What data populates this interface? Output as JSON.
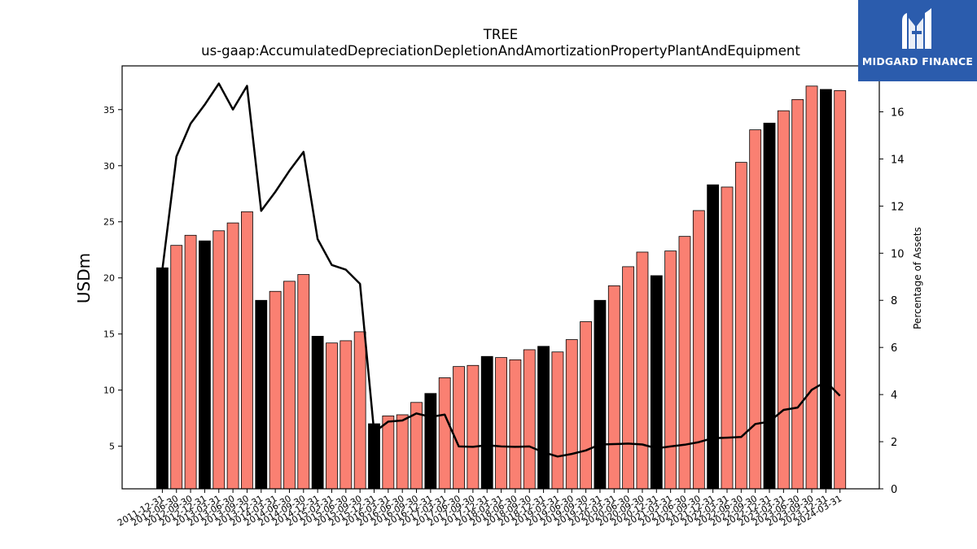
{
  "logo": {
    "text": "MIDGARD FINANCE",
    "background": "#2b5cad"
  },
  "chart_data": {
    "type": "bar",
    "title": "TREE",
    "subtitle": "us-gaap:AccumulatedDepreciationDepletionAndAmortizationPropertyPlantAndEquipment",
    "ylabel": "USDm",
    "y2label": "Percentage of Assets",
    "ylim": [
      1.2,
      38.9
    ],
    "y2lim": [
      0,
      17.95
    ],
    "yticks": [
      5,
      10,
      15,
      20,
      25,
      30,
      35
    ],
    "y2ticks": [
      0,
      2,
      4,
      6,
      8,
      10,
      12,
      14,
      16
    ],
    "categories": [
      "2011-12-31",
      "2012-06-30",
      "2012-09-30",
      "2012-12-31",
      "2013-03-31",
      "2013-06-30",
      "2013-09-30",
      "2013-12-31",
      "2014-03-31",
      "2014-06-30",
      "2014-09-30",
      "2014-12-31",
      "2015-03-31",
      "2015-06-30",
      "2015-09-30",
      "2015-12-31",
      "2016-03-31",
      "2016-06-30",
      "2016-09-30",
      "2016-12-31",
      "2017-03-31",
      "2017-06-30",
      "2017-09-30",
      "2017-12-31",
      "2018-03-31",
      "2018-06-30",
      "2018-09-30",
      "2018-12-31",
      "2019-03-31",
      "2019-06-30",
      "2019-09-30",
      "2019-12-31",
      "2020-03-31",
      "2020-06-30",
      "2020-09-30",
      "2020-12-31",
      "2021-03-31",
      "2021-06-30",
      "2021-09-30",
      "2021-12-31",
      "2022-03-31",
      "2022-06-30",
      "2022-09-30",
      "2022-12-31",
      "2023-03-31",
      "2023-06-30",
      "2023-09-30",
      "2023-12-31",
      "2024-03-31"
    ],
    "bar_colors": {
      "year_end": "#000000",
      "quarter": "#fa8072"
    },
    "series": [
      {
        "name": "USDm",
        "type": "bar",
        "values": [
          20.9,
          22.9,
          23.8,
          23.3,
          24.2,
          24.9,
          25.9,
          18.0,
          18.8,
          19.7,
          20.3,
          14.8,
          14.2,
          14.4,
          15.2,
          7.0,
          7.7,
          7.8,
          8.9,
          9.7,
          11.1,
          12.1,
          12.2,
          13.0,
          12.9,
          12.7,
          13.6,
          13.9,
          13.4,
          14.5,
          16.1,
          18.0,
          19.3,
          21.0,
          22.3,
          20.2,
          22.4,
          23.7,
          26.0,
          28.3,
          28.1,
          30.3,
          33.2,
          33.8,
          34.9,
          35.9,
          37.1,
          36.8,
          36.7
        ],
        "year_end": [
          true,
          false,
          false,
          true,
          false,
          false,
          false,
          true,
          false,
          false,
          false,
          true,
          false,
          false,
          false,
          true,
          false,
          false,
          false,
          true,
          false,
          false,
          false,
          true,
          false,
          false,
          false,
          true,
          false,
          false,
          false,
          true,
          false,
          false,
          false,
          true,
          false,
          false,
          false,
          true,
          false,
          false,
          false,
          true,
          false,
          false,
          false,
          true,
          false
        ]
      },
      {
        "name": "Percentage of Assets",
        "type": "line",
        "axis": "right",
        "color": "#000000",
        "values": [
          9.3,
          14.1,
          15.5,
          16.3,
          17.2,
          16.1,
          17.1,
          11.8,
          12.6,
          13.5,
          14.3,
          10.6,
          9.5,
          9.3,
          8.7,
          2.4,
          2.85,
          2.9,
          3.2,
          3.05,
          3.15,
          1.8,
          1.78,
          1.85,
          1.8,
          1.78,
          1.8,
          1.55,
          1.37,
          1.48,
          1.63,
          1.88,
          1.9,
          1.92,
          1.88,
          1.72,
          1.8,
          1.87,
          1.98,
          2.15,
          2.17,
          2.2,
          2.75,
          2.85,
          3.35,
          3.45,
          4.2,
          4.55,
          3.95
        ]
      }
    ]
  }
}
